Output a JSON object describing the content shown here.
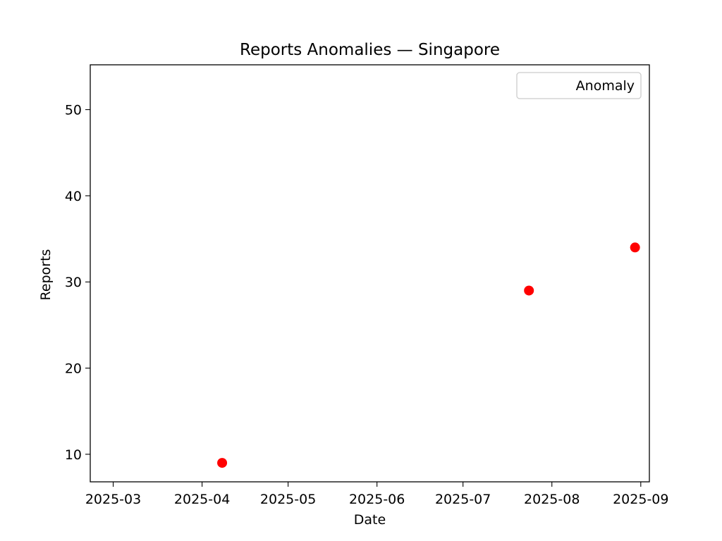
{
  "chart_data": {
    "type": "scatter",
    "title": "Reports Anomalies — Singapore",
    "xlabel": "Date",
    "ylabel": "Reports",
    "x_type": "date",
    "xlim": [
      "2025-02-21",
      "2025-09-04"
    ],
    "ylim": [
      6.8,
      55.2
    ],
    "x_ticks": [
      "2025-03-01",
      "2025-04-01",
      "2025-05-01",
      "2025-06-01",
      "2025-07-01",
      "2025-08-01",
      "2025-09-01"
    ],
    "x_tick_labels": [
      "2025-03",
      "2025-04",
      "2025-05",
      "2025-06",
      "2025-07",
      "2025-08",
      "2025-09"
    ],
    "y_ticks": [
      10,
      20,
      30,
      40,
      50
    ],
    "y_tick_labels": [
      "10",
      "20",
      "30",
      "40",
      "50"
    ],
    "grid": false,
    "legend": {
      "position": "top-right",
      "entries": [
        "Anomaly"
      ]
    },
    "series": [
      {
        "name": "Anomaly",
        "color": "#ff0000",
        "points": [
          {
            "x": "2025-04-08",
            "y": 9
          },
          {
            "x": "2025-07-24",
            "y": 29
          },
          {
            "x": "2025-08-30",
            "y": 34
          }
        ]
      }
    ]
  }
}
